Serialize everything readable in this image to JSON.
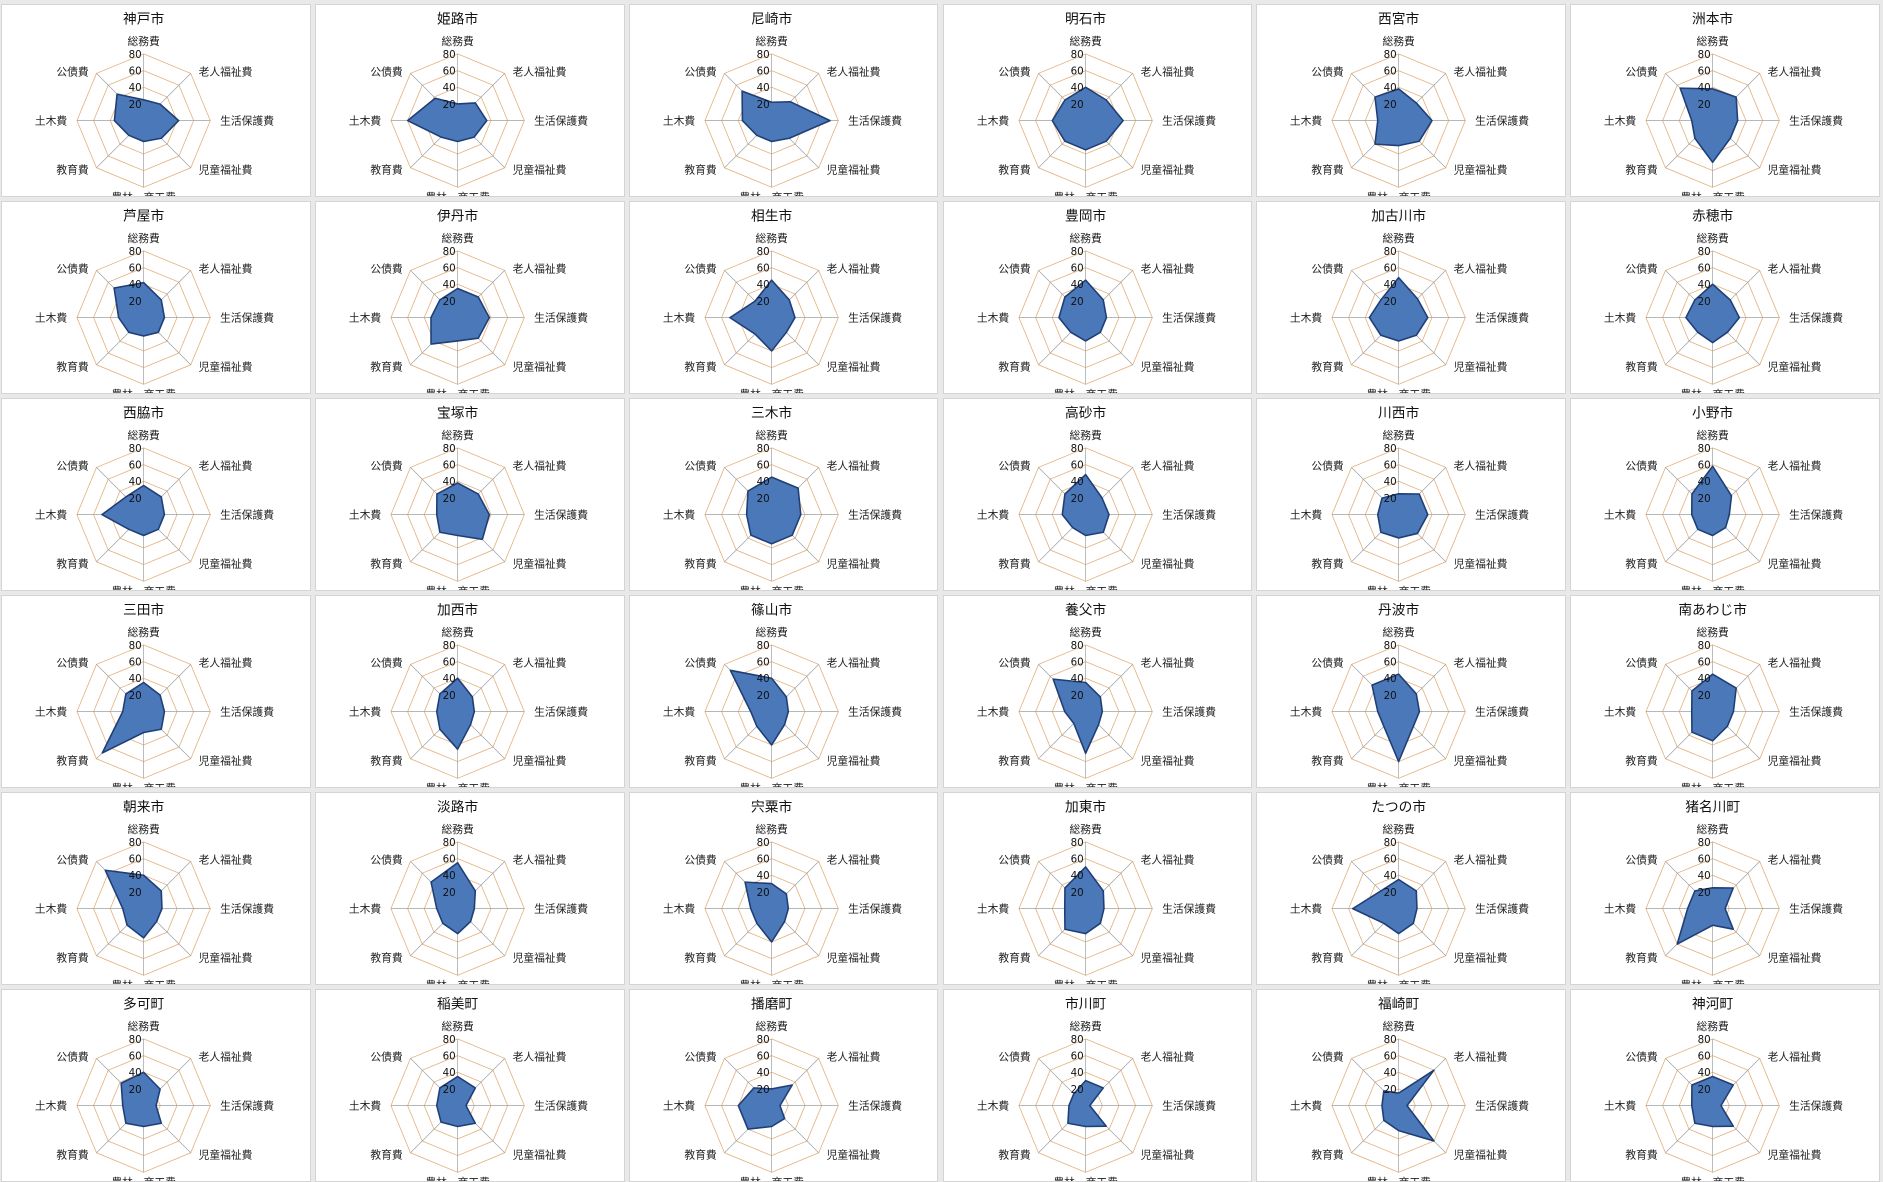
{
  "chart_data": {
    "type": "radar",
    "axes": [
      "総務費",
      "老人福祉費",
      "生活保護費",
      "児童福祉費",
      "農林・商工費",
      "教育費",
      "土木費",
      "公債費"
    ],
    "ticks": [
      20,
      40,
      60,
      80
    ],
    "rmax": 80,
    "grid": true,
    "charts": [
      {
        "title": "神戸市",
        "values": [
          25,
          28,
          42,
          30,
          25,
          25,
          35,
          45
        ]
      },
      {
        "title": "姫路市",
        "values": [
          20,
          30,
          35,
          28,
          25,
          28,
          60,
          38
        ]
      },
      {
        "title": "尼崎市",
        "values": [
          22,
          32,
          70,
          30,
          25,
          25,
          35,
          50
        ]
      },
      {
        "title": "明石市",
        "values": [
          40,
          35,
          45,
          35,
          35,
          35,
          40,
          35
        ]
      },
      {
        "title": "西宮市",
        "values": [
          38,
          30,
          40,
          35,
          30,
          40,
          25,
          40
        ]
      },
      {
        "title": "洲本市",
        "values": [
          38,
          40,
          30,
          30,
          50,
          30,
          25,
          55
        ]
      },
      {
        "title": "芦屋市",
        "values": [
          42,
          30,
          25,
          25,
          22,
          25,
          30,
          50
        ]
      },
      {
        "title": "伊丹市",
        "values": [
          35,
          35,
          38,
          35,
          28,
          45,
          32,
          30
        ]
      },
      {
        "title": "相生市",
        "values": [
          45,
          30,
          28,
          25,
          40,
          28,
          50,
          28
        ]
      },
      {
        "title": "豊岡市",
        "values": [
          45,
          30,
          25,
          25,
          28,
          25,
          32,
          35
        ]
      },
      {
        "title": "加古川市",
        "values": [
          48,
          32,
          35,
          30,
          28,
          30,
          35,
          30
        ]
      },
      {
        "title": "赤穂市",
        "values": [
          40,
          30,
          32,
          25,
          30,
          25,
          32,
          30
        ]
      },
      {
        "title": "西脇市",
        "values": [
          35,
          30,
          25,
          25,
          25,
          25,
          50,
          30
        ]
      },
      {
        "title": "宝塚市",
        "values": [
          38,
          35,
          38,
          42,
          25,
          30,
          25,
          35
        ]
      },
      {
        "title": "三木市",
        "values": [
          45,
          45,
          35,
          35,
          35,
          35,
          30,
          40
        ]
      },
      {
        "title": "高砂市",
        "values": [
          48,
          28,
          28,
          30,
          25,
          22,
          28,
          35
        ]
      },
      {
        "title": "川西市",
        "values": [
          25,
          35,
          35,
          32,
          28,
          30,
          25,
          28
        ]
      },
      {
        "title": "小野市",
        "values": [
          58,
          32,
          20,
          22,
          25,
          25,
          25,
          35
        ]
      },
      {
        "title": "三田市",
        "values": [
          35,
          28,
          25,
          30,
          25,
          70,
          25,
          30
        ]
      },
      {
        "title": "加西市",
        "values": [
          40,
          25,
          20,
          22,
          45,
          30,
          25,
          30
        ]
      },
      {
        "title": "篠山市",
        "values": [
          40,
          25,
          20,
          22,
          40,
          25,
          25,
          70
        ]
      },
      {
        "title": "養父市",
        "values": [
          35,
          25,
          20,
          22,
          50,
          20,
          25,
          55
        ]
      },
      {
        "title": "丹波市",
        "values": [
          45,
          30,
          25,
          25,
          60,
          25,
          25,
          45
        ]
      },
      {
        "title": "南あわじ市",
        "values": [
          45,
          40,
          25,
          25,
          35,
          35,
          25,
          35
        ]
      },
      {
        "title": "朝来市",
        "values": [
          40,
          30,
          22,
          22,
          35,
          28,
          25,
          65
        ]
      },
      {
        "title": "淡路市",
        "values": [
          55,
          30,
          20,
          22,
          30,
          25,
          25,
          45
        ]
      },
      {
        "title": "宍粟市",
        "values": [
          30,
          25,
          20,
          22,
          40,
          25,
          25,
          45
        ]
      },
      {
        "title": "加東市",
        "values": [
          50,
          30,
          22,
          25,
          30,
          35,
          25,
          35
        ]
      },
      {
        "title": "たつの市",
        "values": [
          35,
          30,
          22,
          25,
          30,
          25,
          55,
          30
        ]
      },
      {
        "title": "猪名川町",
        "values": [
          25,
          35,
          15,
          35,
          20,
          60,
          30,
          30
        ]
      },
      {
        "title": "多可町",
        "values": [
          40,
          28,
          15,
          30,
          25,
          30,
          25,
          38
        ]
      },
      {
        "title": "稲美町",
        "values": [
          35,
          30,
          10,
          30,
          25,
          28,
          25,
          30
        ]
      },
      {
        "title": "播磨町",
        "values": [
          20,
          35,
          10,
          22,
          25,
          40,
          40,
          30
        ]
      },
      {
        "title": "市川町",
        "values": [
          30,
          30,
          5,
          35,
          25,
          30,
          20,
          20
        ]
      },
      {
        "title": "福崎町",
        "values": [
          15,
          60,
          10,
          60,
          30,
          25,
          20,
          25
        ]
      },
      {
        "title": "神河町",
        "values": [
          35,
          35,
          10,
          35,
          25,
          30,
          25,
          35
        ]
      }
    ]
  }
}
